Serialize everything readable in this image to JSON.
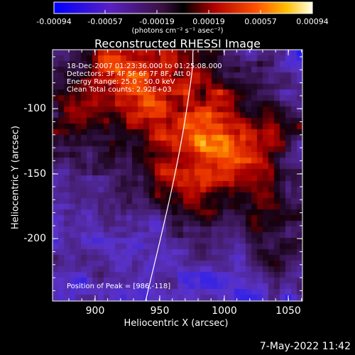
{
  "colorbar": {
    "ticks": [
      "-0.00094",
      "-0.00057",
      "-0.00019",
      "0.00019",
      "0.00057",
      "0.00094"
    ],
    "units": "(photons cm⁻² s⁻¹ asec⁻²)"
  },
  "plot": {
    "title": "Reconstructed RHESSI Image",
    "xlabel": "Heliocentric X (arcsec)",
    "ylabel": "Heliocentric Y (arcsec)",
    "xticks": [
      "900",
      "950",
      "1000",
      "1050"
    ],
    "yticks": [
      "-100",
      "-150",
      "-200"
    ],
    "annotations": [
      "18-Dec-2007 01:23:36.000 to 01:25:08.000",
      "Detectors: 3F 4F 5F 6F 7F 8F, Att 0",
      "Energy Range: 25.0 - 50.0 keV",
      "Clean     Total counts: 2.92E+03"
    ],
    "peak_label": "Position of Peak = [986,-118]"
  },
  "timestamp": "7-May-2022 11:42",
  "chart_data": {
    "type": "heatmap",
    "title": "Reconstructed RHESSI Image",
    "xlabel": "Heliocentric X (arcsec)",
    "ylabel": "Heliocentric Y (arcsec)",
    "xlim": [
      868,
      1062
    ],
    "ylim": [
      -250,
      -68
    ],
    "color_range": [
      -0.00094,
      0.00094
    ],
    "peak": [
      986,
      -118
    ],
    "grid": false
  }
}
